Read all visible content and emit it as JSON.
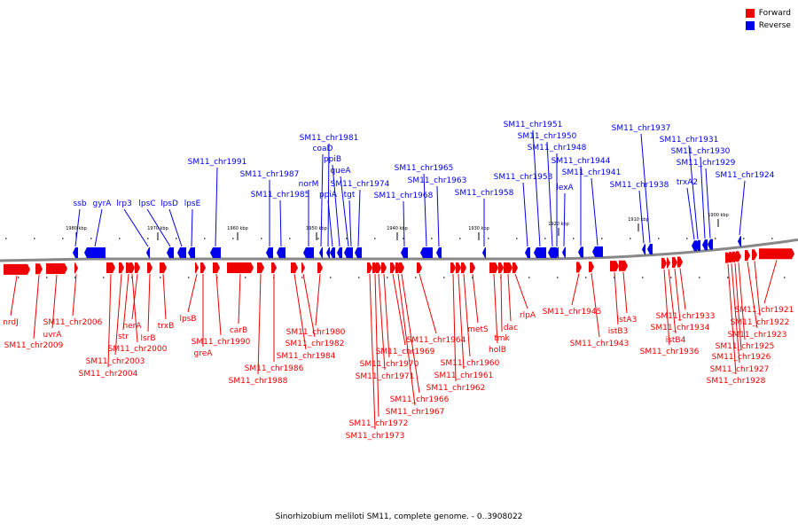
{
  "legend": {
    "forward_label": "Forward",
    "reverse_label": "Reverse",
    "forward_color": "#ee0000",
    "reverse_color": "#0000ee"
  },
  "caption": "Sinorhizobium meliloti SM11, complete genome. - 0..3908022",
  "scale": [
    {
      "label": "1980 kbp"
    },
    {
      "label": "1970 kbp"
    },
    {
      "label": "1960 kbp"
    },
    {
      "label": "1950 kbp"
    },
    {
      "label": "1940 kbp"
    },
    {
      "label": "1930 kbp"
    },
    {
      "label": "1920 kbp"
    },
    {
      "label": "1910 kbp"
    },
    {
      "label": "1900 kbp"
    }
  ],
  "reverse_genes": [
    {
      "name": "ssb"
    },
    {
      "name": "gyrA"
    },
    {
      "name": "lrp3"
    },
    {
      "name": "lpsC"
    },
    {
      "name": "lpsD"
    },
    {
      "name": "lpsE"
    },
    {
      "name": "SM11_chr1991"
    },
    {
      "name": "SM11_chr1987"
    },
    {
      "name": "SM11_chr1985"
    },
    {
      "name": "norM"
    },
    {
      "name": "SM11_chr1981"
    },
    {
      "name": "coaD"
    },
    {
      "name": "ppiA"
    },
    {
      "name": "ppiB"
    },
    {
      "name": "queA"
    },
    {
      "name": "SM11_chr1974"
    },
    {
      "name": "tgt"
    },
    {
      "name": "SM11_chr1968"
    },
    {
      "name": "SM11_chr1965"
    },
    {
      "name": "SM11_chr1963"
    },
    {
      "name": "SM11_chr1958"
    },
    {
      "name": "SM11_chr1953"
    },
    {
      "name": "SM11_chr1951"
    },
    {
      "name": "SM11_chr1950"
    },
    {
      "name": "SM11_chr1948"
    },
    {
      "name": "lexA"
    },
    {
      "name": "SM11_chr1944"
    },
    {
      "name": "SM11_chr1941"
    },
    {
      "name": "SM11_chr1938"
    },
    {
      "name": "SM11_chr1937"
    },
    {
      "name": "trxA2"
    },
    {
      "name": "SM11_chr1931"
    },
    {
      "name": "SM11_chr1930"
    },
    {
      "name": "SM11_chr1929"
    },
    {
      "name": "SM11_chr1924"
    }
  ],
  "forward_genes": [
    {
      "name": "nrdJ"
    },
    {
      "name": "SM11_chr2009"
    },
    {
      "name": "uvrA"
    },
    {
      "name": "SM11_chr2006"
    },
    {
      "name": "SM11_chr2004"
    },
    {
      "name": "SM11_chr2003"
    },
    {
      "name": "str"
    },
    {
      "name": "SM11_chr2000"
    },
    {
      "name": "nerA"
    },
    {
      "name": "lsrB"
    },
    {
      "name": "trxB"
    },
    {
      "name": "lpsB"
    },
    {
      "name": "greA"
    },
    {
      "name": "SM11_chr1990"
    },
    {
      "name": "carB"
    },
    {
      "name": "SM11_chr1988"
    },
    {
      "name": "SM11_chr1986"
    },
    {
      "name": "SM11_chr1984"
    },
    {
      "name": "SM11_chr1982"
    },
    {
      "name": "SM11_chr1980"
    },
    {
      "name": "SM11_chr1973"
    },
    {
      "name": "SM11_chr1972"
    },
    {
      "name": "SM11_chr1971"
    },
    {
      "name": "SM11_chr1970"
    },
    {
      "name": "SM11_chr1969"
    },
    {
      "name": "SM11_chr1967"
    },
    {
      "name": "SM11_chr1966"
    },
    {
      "name": "SM11_chr1964"
    },
    {
      "name": "SM11_chr1962"
    },
    {
      "name": "SM11_chr1961"
    },
    {
      "name": "SM11_chr1960"
    },
    {
      "name": "metS"
    },
    {
      "name": "holB"
    },
    {
      "name": "tmk"
    },
    {
      "name": "dac"
    },
    {
      "name": "rlpA"
    },
    {
      "name": "SM11_chr1945"
    },
    {
      "name": "SM11_chr1943"
    },
    {
      "name": "istB3"
    },
    {
      "name": "istA3"
    },
    {
      "name": "SM11_chr1936"
    },
    {
      "name": "istB4"
    },
    {
      "name": "SM11_chr1934"
    },
    {
      "name": "SM11_chr1933"
    },
    {
      "name": "SM11_chr1928"
    },
    {
      "name": "SM11_chr1927"
    },
    {
      "name": "SM11_chr1926"
    },
    {
      "name": "SM11_chr1925"
    },
    {
      "name": "SM11_chr1923"
    },
    {
      "name": "SM11_chr1922"
    },
    {
      "name": "SM11_chr1921"
    }
  ]
}
